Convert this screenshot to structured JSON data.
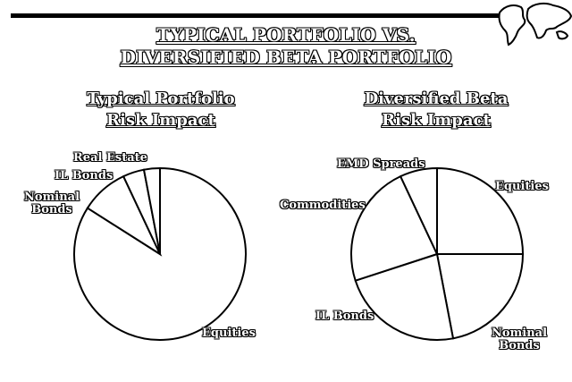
{
  "title": {
    "line1": "TYPICAL PORTFOLIO VS.",
    "line2": "DIVERSIFIED BETA PORTFOLIO"
  },
  "chart_data": [
    {
      "type": "pie",
      "title_line1": "Typical Portfolio",
      "title_line2": "Risk Impact",
      "slices": [
        {
          "label": "Equities",
          "value": 84
        },
        {
          "label": "Nominal Bonds",
          "value": 9
        },
        {
          "label": "IL Bonds",
          "value": 4
        },
        {
          "label": "Real Estate",
          "value": 3
        }
      ]
    },
    {
      "type": "pie",
      "title_line1": "Diversified Beta",
      "title_line2": "Risk Impact",
      "slices": [
        {
          "label": "Equities",
          "value": 25
        },
        {
          "label": "Nominal Bonds",
          "value": 22
        },
        {
          "label": "IL Bonds",
          "value": 23
        },
        {
          "label": "Commodities",
          "value": 23
        },
        {
          "label": "EMD Spreads",
          "value": 7
        }
      ]
    }
  ]
}
